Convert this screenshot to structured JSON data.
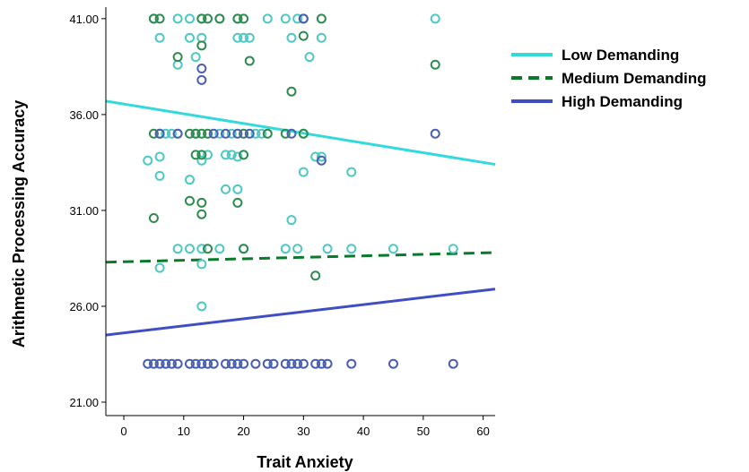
{
  "chart_data": {
    "type": "scatter",
    "xlabel": "Trait Anxiety",
    "ylabel": "Arithmetic Processing Accuracy",
    "xlim": [
      -3,
      62
    ],
    "ylim": [
      20.3,
      41.6
    ],
    "x_ticks": [
      0,
      10,
      20,
      30,
      40,
      50,
      60
    ],
    "x_tick_labels": [
      "0",
      "10",
      "20",
      "30",
      "40",
      "50",
      "60"
    ],
    "y_ticks": [
      21,
      26,
      31,
      36,
      41
    ],
    "y_tick_labels": [
      "21.00",
      "26.00",
      "31.00",
      "36.00",
      "41.00"
    ],
    "grid": false,
    "legend_position": "right",
    "series": [
      {
        "name": "Low Demanding",
        "color": "#4dc8c4",
        "line_color": "#33d9db",
        "line_style": "solid",
        "fit_line": [
          [
            -3,
            36.7
          ],
          [
            62,
            33.4
          ]
        ],
        "points": [
          [
            5,
            41
          ],
          [
            9,
            41
          ],
          [
            11,
            41
          ],
          [
            13,
            41
          ],
          [
            16,
            41
          ],
          [
            19,
            41
          ],
          [
            24,
            41
          ],
          [
            27,
            41
          ],
          [
            29,
            41
          ],
          [
            52,
            41
          ],
          [
            6,
            40
          ],
          [
            11,
            40
          ],
          [
            13,
            40
          ],
          [
            19,
            40
          ],
          [
            20,
            40
          ],
          [
            21,
            40
          ],
          [
            28,
            40
          ],
          [
            33,
            40
          ],
          [
            12,
            39
          ],
          [
            9,
            38.6
          ],
          [
            31,
            39
          ],
          [
            4,
            33.6
          ],
          [
            6,
            33.8
          ],
          [
            13,
            33.6
          ],
          [
            14,
            33.9
          ],
          [
            17,
            33.9
          ],
          [
            18,
            33.9
          ],
          [
            19,
            33.8
          ],
          [
            32,
            33.8
          ],
          [
            33,
            33.8
          ],
          [
            6,
            32.8
          ],
          [
            11,
            32.6
          ],
          [
            30,
            33
          ],
          [
            38,
            33
          ],
          [
            17,
            32.1
          ],
          [
            19,
            32.1
          ],
          [
            7,
            35
          ],
          [
            8,
            35
          ],
          [
            9,
            35
          ],
          [
            12,
            35
          ],
          [
            16,
            35
          ],
          [
            18,
            35
          ],
          [
            22,
            35
          ],
          [
            23,
            35
          ],
          [
            30,
            35
          ],
          [
            9,
            29
          ],
          [
            11,
            29
          ],
          [
            13,
            29
          ],
          [
            16,
            29
          ],
          [
            20,
            29
          ],
          [
            27,
            29
          ],
          [
            29,
            29
          ],
          [
            34,
            29
          ],
          [
            38,
            29
          ],
          [
            45,
            29
          ],
          [
            55,
            29
          ],
          [
            6,
            28
          ],
          [
            13,
            28.2
          ],
          [
            28,
            30.5
          ],
          [
            13,
            26
          ]
        ]
      },
      {
        "name": "Medium Demanding",
        "color": "#2e8b4e",
        "line_color": "#0a7a2a",
        "line_style": "dashed",
        "fit_line": [
          [
            -3,
            28.3
          ],
          [
            62,
            28.8
          ]
        ],
        "points": [
          [
            5,
            41
          ],
          [
            6,
            41
          ],
          [
            13,
            41
          ],
          [
            14,
            41
          ],
          [
            16,
            41
          ],
          [
            19,
            41
          ],
          [
            20,
            41
          ],
          [
            30,
            41
          ],
          [
            33,
            41
          ],
          [
            9,
            39
          ],
          [
            13,
            39.6
          ],
          [
            21,
            38.8
          ],
          [
            30,
            40.1
          ],
          [
            52,
            38.6
          ],
          [
            28,
            37.2
          ],
          [
            5,
            35
          ],
          [
            6,
            35
          ],
          [
            11,
            35
          ],
          [
            12,
            35
          ],
          [
            13,
            35
          ],
          [
            14,
            35
          ],
          [
            20,
            35
          ],
          [
            24,
            35
          ],
          [
            27,
            35
          ],
          [
            30,
            35
          ],
          [
            12,
            33.9
          ],
          [
            13,
            33.9
          ],
          [
            20,
            33.9
          ],
          [
            11,
            31.5
          ],
          [
            13,
            31.4
          ],
          [
            19,
            31.4
          ],
          [
            13,
            30.8
          ],
          [
            5,
            30.6
          ],
          [
            14,
            29
          ],
          [
            20,
            29
          ],
          [
            32,
            27.6
          ]
        ]
      },
      {
        "name": "High Demanding",
        "color": "#4a5fb0",
        "line_color": "#3f4ec2",
        "line_style": "solid",
        "fit_line": [
          [
            -3,
            24.5
          ],
          [
            62,
            26.9
          ]
        ],
        "points": [
          [
            30,
            41
          ],
          [
            13,
            38.4
          ],
          [
            13,
            37.8
          ],
          [
            6,
            35
          ],
          [
            9,
            35
          ],
          [
            15,
            35
          ],
          [
            17,
            35
          ],
          [
            19,
            35
          ],
          [
            21,
            35
          ],
          [
            28,
            35
          ],
          [
            52,
            35
          ],
          [
            33,
            33.6
          ],
          [
            4,
            23
          ],
          [
            5,
            23
          ],
          [
            6,
            23
          ],
          [
            7,
            23
          ],
          [
            8,
            23
          ],
          [
            9,
            23
          ],
          [
            11,
            23
          ],
          [
            12,
            23
          ],
          [
            13,
            23
          ],
          [
            14,
            23
          ],
          [
            15,
            23
          ],
          [
            17,
            23
          ],
          [
            18,
            23
          ],
          [
            19,
            23
          ],
          [
            20,
            23
          ],
          [
            22,
            23
          ],
          [
            24,
            23
          ],
          [
            25,
            23
          ],
          [
            27,
            23
          ],
          [
            28,
            23
          ],
          [
            29,
            23
          ],
          [
            30,
            23
          ],
          [
            32,
            23
          ],
          [
            33,
            23
          ],
          [
            34,
            23
          ],
          [
            38,
            23
          ],
          [
            45,
            23
          ],
          [
            55,
            23
          ]
        ]
      }
    ]
  }
}
